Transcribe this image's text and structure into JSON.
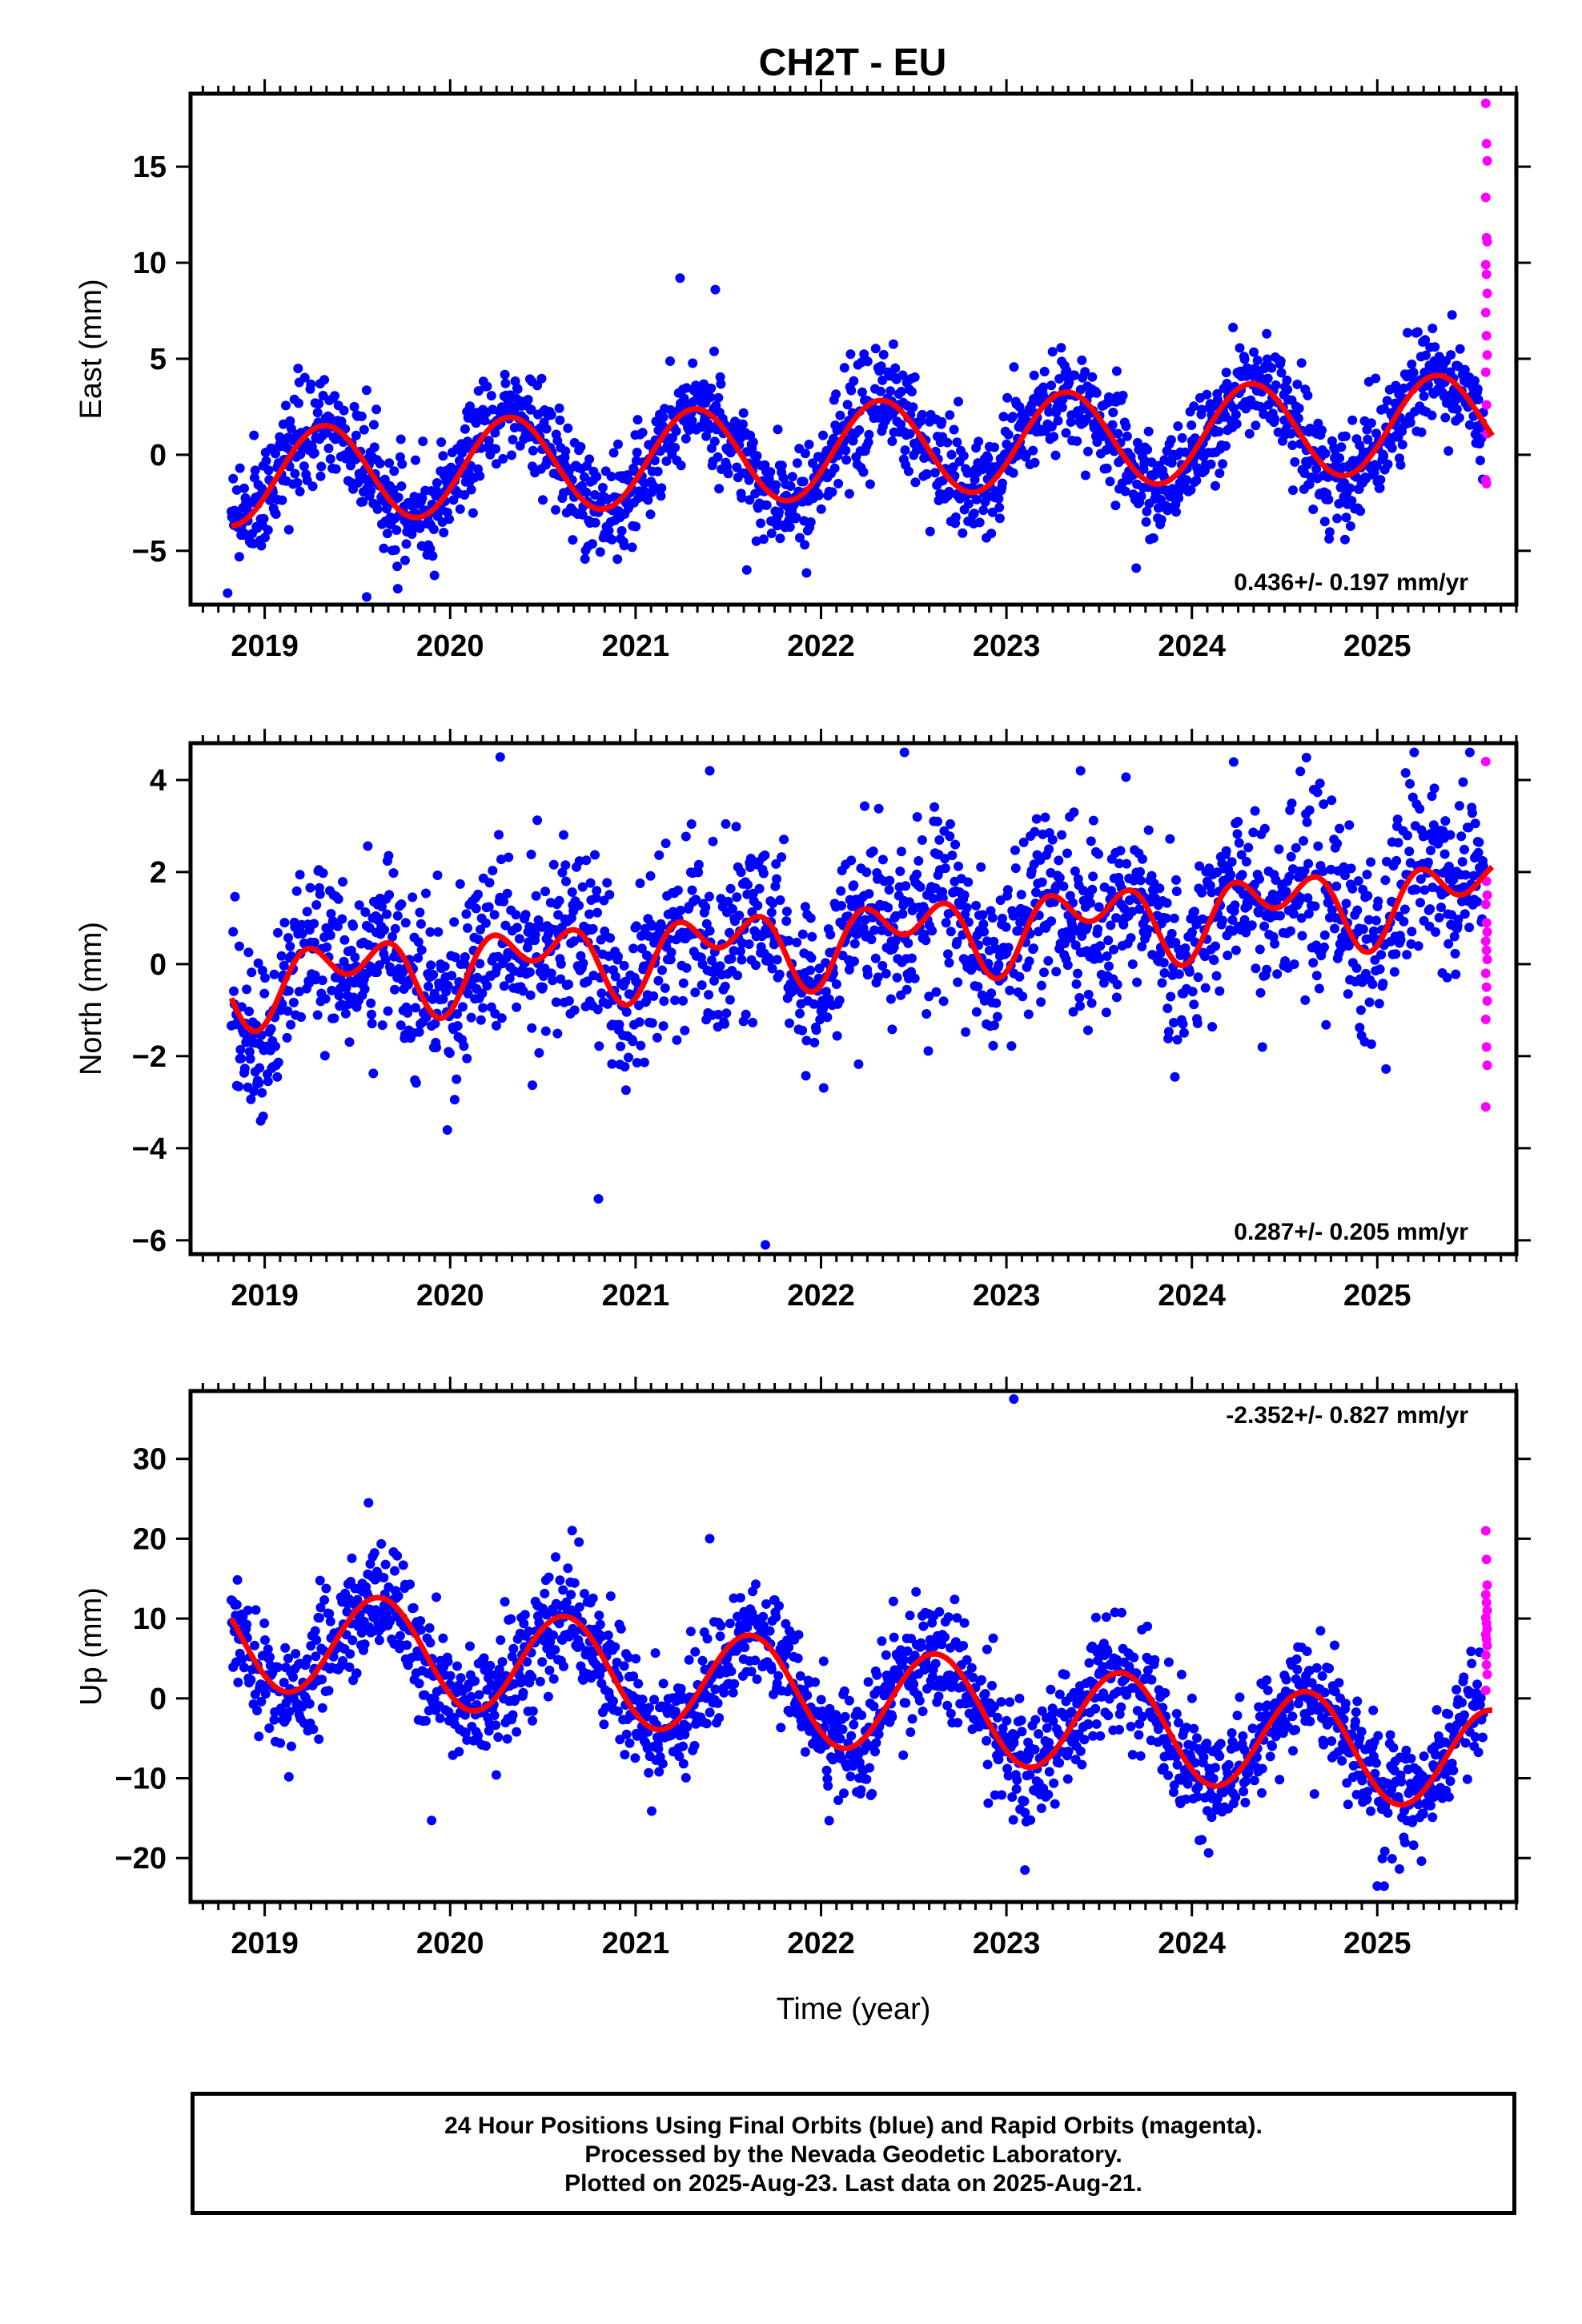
{
  "title": "CH2T - EU",
  "colors": {
    "final": "#0000ff",
    "rapid": "#ff00ff",
    "fit": "#ff0000",
    "frame": "#000000"
  },
  "footer": {
    "line1": "24 Hour Positions Using Final Orbits (blue) and Rapid Orbits (magenta).",
    "line2": "Processed by the Nevada Geodetic Laboratory.",
    "line3": "Plotted on 2025-Aug-23. Last data on 2025-Aug-21."
  },
  "chart_data": [
    {
      "type": "scatter",
      "component": "east",
      "ylabel": "East (mm)",
      "xlabel": "",
      "rate_label": "0.436+/- 0.197 mm/yr",
      "rate_position": "bottom-right",
      "xlim": [
        2018.6,
        2025.75
      ],
      "ylim": [
        -7.8,
        18.8
      ],
      "x_ticks": [
        2019,
        2020,
        2021,
        2022,
        2023,
        2024,
        2025
      ],
      "y_ticks": [
        -5,
        0,
        5,
        10,
        15
      ],
      "model": {
        "mean": -1.2,
        "rate": 0.436,
        "t0": 2018.82,
        "amp1": 2.5,
        "peak1": 0.32,
        "amp2": 0.0,
        "peak2": 0.0,
        "noise": 1.3
      },
      "rapid_values": [
        18.3,
        16.2,
        15.3,
        13.4,
        11.3,
        11.1,
        9.9,
        9.4,
        8.4,
        7.4,
        6.2,
        5.2,
        4.3,
        2.6,
        1.1,
        -1.3,
        -1.5
      ],
      "outliers": [
        [
          2021.24,
          9.2
        ],
        [
          2021.43,
          8.6
        ],
        [
          2019.55,
          -7.4
        ],
        [
          2018.8,
          -7.2
        ],
        [
          2023.7,
          -5.9
        ],
        [
          2021.6,
          -6.0
        ]
      ]
    },
    {
      "type": "scatter",
      "component": "north",
      "ylabel": "North (mm)",
      "xlabel": "",
      "rate_label": "0.287+/- 0.205 mm/yr",
      "rate_position": "bottom-right",
      "xlim": [
        2018.6,
        2025.75
      ],
      "ylim": [
        -6.3,
        4.8
      ],
      "x_ticks": [
        2019,
        2020,
        2021,
        2022,
        2023,
        2024,
        2025
      ],
      "y_ticks": [
        -6,
        -4,
        -2,
        0,
        2,
        4
      ],
      "model": {
        "mean": -0.4,
        "rate": 0.287,
        "t0": 2018.82,
        "amp1": 0.55,
        "peak1": 0.45,
        "amp2": 0.55,
        "peak2": 0.2,
        "noise": 0.95
      },
      "rapid_values": [
        4.4,
        1.8,
        1.5,
        1.3,
        0.9,
        0.7,
        0.5,
        0.3,
        0.1,
        -0.2,
        -0.5,
        -0.8,
        -1.2,
        -1.8,
        -2.2,
        -3.1
      ],
      "outliers": [
        [
          2021.7,
          -6.1
        ],
        [
          2020.8,
          -5.1
        ],
        [
          2022.45,
          4.6
        ],
        [
          2020.27,
          4.5
        ],
        [
          2021.4,
          4.2
        ],
        [
          2023.4,
          4.2
        ]
      ]
    },
    {
      "type": "scatter",
      "component": "up",
      "ylabel": "Up (mm)",
      "xlabel": "Time (year)",
      "rate_label": "-2.352+/- 0.827 mm/yr",
      "rate_position": "top-right",
      "xlim": [
        2018.6,
        2025.75
      ],
      "ylim": [
        -25.5,
        38.5
      ],
      "x_ticks": [
        2019,
        2020,
        2021,
        2022,
        2023,
        2024,
        2025
      ],
      "y_ticks": [
        -20,
        -10,
        0,
        10,
        20,
        30
      ],
      "model": {
        "mean": 8.0,
        "rate": -2.352,
        "t0": 2018.82,
        "amp1": 6.5,
        "peak1": 0.62,
        "amp2": 0.0,
        "peak2": 0.0,
        "noise": 3.6
      },
      "rapid_values": [
        21.0,
        17.4,
        14.2,
        13.0,
        12.0,
        11.0,
        10.1,
        9.4,
        8.7,
        8.0,
        7.4,
        6.6,
        5.4,
        4.2,
        3.0,
        1.0
      ],
      "outliers": [
        [
          2023.04,
          37.5
        ],
        [
          2019.56,
          24.5
        ],
        [
          2023.1,
          -21.5
        ],
        [
          2025.0,
          -23.5
        ],
        [
          2019.9,
          -15.3
        ],
        [
          2021.4,
          20.0
        ]
      ]
    }
  ]
}
